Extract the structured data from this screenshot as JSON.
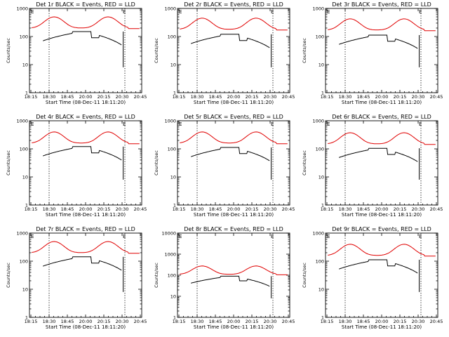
{
  "chart_data": [
    {
      "type": "line",
      "title": "Det 1r BLACK = Events, RED = LLD",
      "marker": "E",
      "series_colors": {
        "events": "#000000",
        "lld": "#e00000"
      },
      "series": [
        {
          "name": "BLACK = Events",
          "level": 1.0
        },
        {
          "name": "RED = LLD",
          "level": 1.0
        }
      ],
      "ylim": [
        1,
        1000
      ],
      "yscale": "log"
    },
    {
      "type": "line",
      "title": "Det 2r BLACK = Events, RED = LLD",
      "marker": "E",
      "series_colors": {
        "events": "#000000",
        "lld": "#e00000"
      },
      "series": [
        {
          "name": "BLACK = Events",
          "level": 0.8
        },
        {
          "name": "RED = LLD",
          "level": 0.9
        }
      ],
      "ylim": [
        1,
        1000
      ],
      "yscale": "log"
    },
    {
      "type": "line",
      "title": "Det 3r BLACK = Events, RED = LLD",
      "marker": "E",
      "series_colors": {
        "events": "#000000",
        "lld": "#e00000"
      },
      "series": [
        {
          "name": "BLACK = Events",
          "level": 0.75
        },
        {
          "name": "RED = LLD",
          "level": 0.85
        }
      ],
      "ylim": [
        1,
        1000
      ],
      "yscale": "log"
    },
    {
      "type": "line",
      "title": "Det 4r BLACK = Events, RED = LLD",
      "marker": "E",
      "series_colors": {
        "events": "#000000",
        "lld": "#e00000"
      },
      "series": [
        {
          "name": "BLACK = Events",
          "level": 0.8
        },
        {
          "name": "RED = LLD",
          "level": 0.8
        }
      ],
      "ylim": [
        1,
        1000
      ],
      "yscale": "log"
    },
    {
      "type": "line",
      "title": "Det 5r BLACK = Events, RED = LLD",
      "marker": "E",
      "series_colors": {
        "events": "#000000",
        "lld": "#e00000"
      },
      "series": [
        {
          "name": "BLACK = Events",
          "level": 0.75
        },
        {
          "name": "RED = LLD",
          "level": 0.8
        }
      ],
      "ylim": [
        1,
        1000
      ],
      "yscale": "log"
    },
    {
      "type": "line",
      "title": "Det 6r BLACK = Events, RED = LLD",
      "marker": "E",
      "series_colors": {
        "events": "#000000",
        "lld": "#e00000"
      },
      "series": [
        {
          "name": "BLACK = Events",
          "level": 0.7
        },
        {
          "name": "RED = LLD",
          "level": 0.75
        }
      ],
      "ylim": [
        1,
        1000
      ],
      "yscale": "log"
    },
    {
      "type": "line",
      "title": "Det 7r BLACK = Events, RED = LLD",
      "marker": "E",
      "series_colors": {
        "events": "#000000",
        "lld": "#e00000"
      },
      "series": [
        {
          "name": "BLACK = Events",
          "level": 0.95
        },
        {
          "name": "RED = LLD",
          "level": 1.0
        }
      ],
      "ylim": [
        1,
        1000
      ],
      "yscale": "log"
    },
    {
      "type": "line",
      "title": "Det 8r BLACK = Events, RED = LLD",
      "marker": "E",
      "series_colors": {
        "events": "#000000",
        "lld": "#e00000"
      },
      "series": [
        {
          "name": "BLACK = Events",
          "level": 0.6
        },
        {
          "name": "RED = LLD",
          "level": 0.55
        }
      ],
      "ylim": [
        1,
        10000
      ],
      "yscale": "log"
    },
    {
      "type": "line",
      "title": "Det 9r BLACK = Events, RED = LLD",
      "marker": "E",
      "series_colors": {
        "events": "#000000",
        "lld": "#e00000"
      },
      "series": [
        {
          "name": "BLACK = Events",
          "level": 0.75
        },
        {
          "name": "RED = LLD",
          "level": 0.8
        }
      ],
      "ylim": [
        1,
        1000
      ],
      "yscale": "log"
    }
  ],
  "shared": {
    "ylabel": "Counts/sec",
    "xlabel": "Start Time (08-Dec-11 18:11:20)",
    "xticks": [
      "18:15",
      "18:30",
      "18:45",
      "20:00",
      "20:15",
      "20:30",
      "20:45"
    ],
    "yticks_3": [
      "1",
      "10",
      "100",
      "1000"
    ],
    "yticks_4": [
      "1",
      "10",
      "100",
      "1000",
      "10000"
    ]
  }
}
